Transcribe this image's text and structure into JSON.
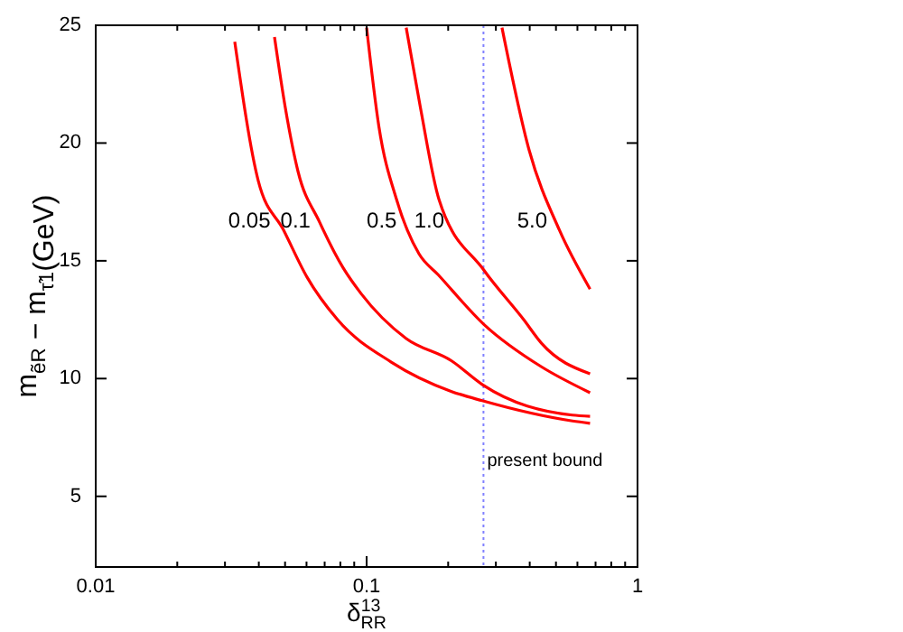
{
  "chart_data": {
    "type": "line",
    "xlabel": "δ$^{13}$$_{RR}$",
    "ylabel": "m$_{ẽR}$ − m$_{τ̃1}$(GeV)",
    "log": "x",
    "grid": false,
    "marker": "none",
    "line_style": "solid",
    "xlim": [
      0.01,
      1
    ],
    "ylim": [
      2,
      25
    ],
    "xticks": [
      0.01,
      {
        "value": 0.02,
        "label": null
      },
      {
        "value": 0.03,
        "label": null
      },
      {
        "value": 0.04,
        "label": null
      },
      {
        "value": 0.05,
        "label": null
      },
      {
        "value": 0.06,
        "label": null
      },
      {
        "value": 0.07,
        "label": null
      },
      {
        "value": 0.08,
        "label": null
      },
      {
        "value": 0.09,
        "label": null
      },
      0.1,
      {
        "value": 0.2,
        "label": null
      },
      {
        "value": 0.3,
        "label": null
      },
      {
        "value": 0.4,
        "label": null
      },
      {
        "value": 0.5,
        "label": null
      },
      {
        "value": 0.6,
        "label": null
      },
      {
        "value": 0.7,
        "label": null
      },
      {
        "value": 0.8,
        "label": null
      },
      {
        "value": 0.9,
        "label": null
      },
      1
    ],
    "yticks": [
      5,
      10,
      15,
      20,
      25
    ],
    "series": [
      {
        "name": "0.05",
        "color": "#ff0000",
        "x": [
          0.0326,
          0.0398,
          0.0494,
          0.0603,
          0.0781,
          0.1233,
          0.206,
          0.267,
          0.575,
          0.668
        ],
        "values": [
          24.3,
          18.4,
          16.3,
          14.3,
          12.5,
          10.7,
          9.45,
          9.06,
          8.2,
          8.1
        ]
      },
      {
        "name": "0.1",
        "color": "#ff0000",
        "x": [
          0.0457,
          0.0501,
          0.0558,
          0.067,
          0.0819,
          0.0955,
          0.14,
          0.206,
          0.267,
          0.575,
          0.668
        ],
        "values": [
          24.5,
          21.5,
          18.8,
          16.65,
          14.7,
          13.6,
          11.7,
          10.75,
          9.75,
          8.45,
          8.4
        ]
      },
      {
        "name": "0.5",
        "color": "#ff0000",
        "x": [
          0.1,
          0.111,
          0.129,
          0.156,
          0.184,
          0.271,
          0.442,
          0.668
        ],
        "values": [
          24.9,
          20.7,
          17.6,
          15.3,
          14.4,
          12.3,
          10.5,
          9.4
        ]
      },
      {
        "name": "1.0",
        "color": "#ff0000",
        "x": [
          0.14,
          0.158,
          0.185,
          0.271,
          0.38,
          0.442,
          0.668
        ],
        "values": [
          24.9,
          21.5,
          17.6,
          14.6,
          12.5,
          11.5,
          10.2
        ]
      },
      {
        "name": "5.0",
        "color": "#ff0000",
        "x": [
          0.316,
          0.398,
          0.515,
          0.668
        ],
        "values": [
          24.9,
          19.7,
          16.3,
          13.8
        ]
      }
    ],
    "ref_lines": [
      {
        "axis": "x",
        "value": 0.27,
        "label": "present bound",
        "color": "#8080ff",
        "line_style": "dotted"
      }
    ]
  }
}
